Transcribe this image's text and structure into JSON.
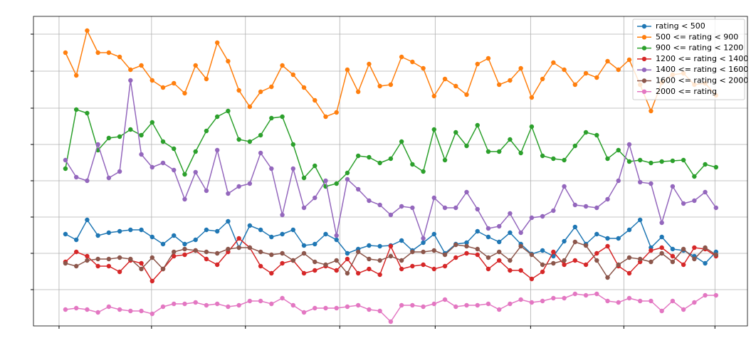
{
  "chart_data": {
    "type": "line",
    "x": [
      0,
      1,
      2,
      3,
      4,
      5,
      6,
      7,
      8,
      9,
      10,
      11,
      12,
      13,
      14,
      15,
      16,
      17,
      18,
      19,
      20,
      21,
      22,
      23,
      24,
      25,
      26,
      27,
      28,
      29,
      30,
      31,
      32,
      33,
      34,
      35,
      36,
      37,
      38,
      39,
      40,
      41,
      42,
      43,
      44,
      45,
      46,
      47,
      48,
      49,
      50,
      51,
      52,
      53,
      54,
      55,
      56,
      57,
      58,
      59,
      60
    ],
    "xlim": [
      -2.95,
      62.9
    ],
    "xticks": [
      -0.59,
      7.94,
      16.6,
      25.3,
      34.1,
      42.9,
      51.5,
      59.9
    ],
    "ylim": [
      0,
      435
    ],
    "yticks": [
      51,
      102,
      153,
      204,
      255,
      306,
      358,
      410
    ],
    "grid": true,
    "legend": "upper right",
    "series": [
      {
        "name": "rating < 500",
        "color": "#1f77b4",
        "values": [
          129,
          121,
          149,
          127,
          131,
          133,
          135,
          135,
          125,
          115,
          127,
          115,
          121,
          135,
          133,
          147,
          110,
          141,
          135,
          125,
          129,
          135,
          113,
          115,
          129,
          121,
          102,
          108,
          113,
          112,
          113,
          120,
          106,
          117,
          129,
          102,
          115,
          117,
          133,
          125,
          118,
          131,
          115,
          101,
          106,
          98,
          119,
          139,
          115,
          129,
          123,
          123,
          135,
          149,
          110,
          125,
          108,
          106,
          98,
          88,
          104
        ]
      },
      {
        "name": "500 <= rating < 900",
        "color": "#ff7f0e",
        "values": [
          384,
          352,
          415,
          384,
          384,
          378,
          360,
          366,
          345,
          335,
          341,
          327,
          366,
          347,
          398,
          372,
          331,
          308,
          329,
          336,
          366,
          353,
          335,
          317,
          294,
          300,
          360,
          329,
          368,
          337,
          339,
          378,
          371,
          362,
          323,
          347,
          337,
          325,
          368,
          376,
          339,
          345,
          362,
          321,
          347,
          370,
          360,
          339,
          355,
          349,
          372,
          360,
          374,
          339,
          302,
          342,
          353,
          355,
          339,
          341,
          324
        ]
      },
      {
        "name": "900 <= rating < 1200",
        "color": "#2ca02c",
        "values": [
          221,
          304,
          299,
          247,
          264,
          266,
          276,
          268,
          286,
          259,
          249,
          213,
          245,
          274,
          294,
          302,
          262,
          259,
          268,
          292,
          294,
          255,
          208,
          225,
          196,
          200,
          215,
          239,
          237,
          229,
          235,
          259,
          227,
          217,
          276,
          233,
          272,
          253,
          282,
          245,
          245,
          262,
          243,
          280,
          239,
          235,
          233,
          253,
          272,
          268,
          235,
          247,
          231,
          233,
          229,
          231,
          232,
          233,
          210,
          227,
          223
        ]
      },
      {
        "name": "1200 <= rating < 1400",
        "color": "#d62728",
        "values": [
          90,
          104,
          98,
          84,
          84,
          76,
          92,
          88,
          63,
          80,
          98,
          100,
          106,
          94,
          86,
          104,
          123,
          110,
          84,
          74,
          88,
          92,
          74,
          78,
          84,
          78,
          94,
          74,
          80,
          72,
          112,
          80,
          84,
          86,
          80,
          84,
          96,
          102,
          100,
          80,
          92,
          78,
          78,
          66,
          76,
          104,
          86,
          92,
          86,
          102,
          112,
          84,
          74,
          90,
          106,
          110,
          98,
          86,
          110,
          108,
          98
        ]
      },
      {
        "name": "1400 <= rating < 1600",
        "color": "#9467bd",
        "values": [
          233,
          209,
          204,
          255,
          208,
          217,
          345,
          241,
          223,
          229,
          219,
          178,
          216,
          190,
          247,
          186,
          196,
          200,
          243,
          221,
          156,
          221,
          166,
          180,
          204,
          127,
          206,
          192,
          176,
          170,
          156,
          168,
          166,
          123,
          180,
          166,
          166,
          188,
          164,
          137,
          140,
          158,
          131,
          152,
          154,
          162,
          196,
          170,
          168,
          166,
          178,
          204,
          255,
          202,
          200,
          145,
          196,
          172,
          176,
          188,
          166
        ]
      },
      {
        "name": "1600 <= rating < 2000",
        "color": "#8c564b",
        "values": [
          88,
          84,
          92,
          94,
          94,
          96,
          94,
          80,
          96,
          80,
          104,
          108,
          106,
          104,
          102,
          108,
          110,
          110,
          104,
          100,
          102,
          92,
          102,
          90,
          86,
          92,
          74,
          104,
          94,
          92,
          98,
          92,
          104,
          104,
          106,
          100,
          114,
          112,
          108,
          96,
          104,
          92,
          112,
          100,
          86,
          88,
          92,
          118,
          113,
          92,
          68,
          86,
          96,
          94,
          90,
          102,
          90,
          108,
          94,
          110,
          100
        ]
      },
      {
        "name": "2000 <= rating",
        "color": "#e377c2",
        "values": [
          23,
          25,
          23,
          19,
          27,
          23,
          21,
          21,
          17,
          27,
          31,
          31,
          33,
          29,
          31,
          27,
          29,
          35,
          35,
          31,
          39,
          29,
          19,
          25,
          25,
          25,
          27,
          29,
          23,
          21,
          6,
          29,
          29,
          27,
          31,
          37,
          27,
          29,
          29,
          31,
          23,
          31,
          37,
          33,
          35,
          39,
          39,
          45,
          43,
          45,
          35,
          33,
          39,
          35,
          35,
          21,
          35,
          23,
          33,
          43,
          43
        ]
      }
    ]
  }
}
